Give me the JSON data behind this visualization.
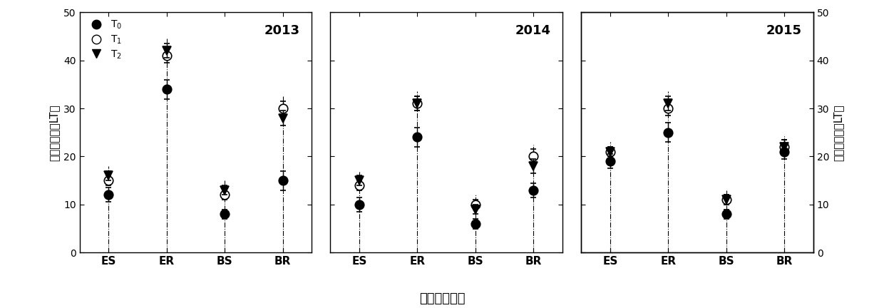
{
  "years": [
    "2013",
    "2014",
    "2015"
  ],
  "categories": [
    "ES",
    "ER",
    "BS",
    "BR"
  ],
  "data": {
    "2013": {
      "T0": [
        12,
        34,
        8,
        15
      ],
      "T1": [
        15,
        41,
        12,
        30
      ],
      "T2": [
        16,
        42,
        13,
        28
      ],
      "T0_err": [
        1.5,
        2.0,
        1.0,
        2.0
      ],
      "T1_err": [
        1.0,
        1.5,
        1.0,
        1.5
      ],
      "T2_err": [
        1.0,
        1.5,
        1.0,
        1.5
      ]
    },
    "2014": {
      "T0": [
        10,
        24,
        6,
        13
      ],
      "T1": [
        14,
        31,
        10,
        20
      ],
      "T2": [
        15,
        31,
        9,
        18
      ],
      "T0_err": [
        1.5,
        2.0,
        1.0,
        1.5
      ],
      "T1_err": [
        1.0,
        1.5,
        1.0,
        1.5
      ],
      "T2_err": [
        1.0,
        1.5,
        1.0,
        1.5
      ]
    },
    "2015": {
      "T0": [
        19,
        25,
        8,
        21
      ],
      "T1": [
        21,
        30,
        11,
        22
      ],
      "T2": [
        21,
        31,
        11,
        22
      ],
      "T0_err": [
        1.5,
        2.0,
        1.0,
        1.5
      ],
      "T1_err": [
        1.0,
        1.5,
        1.0,
        1.5
      ],
      "T2_err": [
        1.0,
        1.5,
        1.0,
        1.5
      ]
    }
  },
  "ylim": [
    0,
    50
  ],
  "yticks": [
    0,
    10,
    20,
    30,
    40,
    50
  ],
  "ylabel_left": "冠层透光率（LT）",
  "ylabel_right": "冠层透光率（LT）",
  "xlabel": "冠层不同层次",
  "background_color": "#ffffff",
  "marker_size": 9,
  "capsize": 3,
  "elinewidth": 1.0
}
